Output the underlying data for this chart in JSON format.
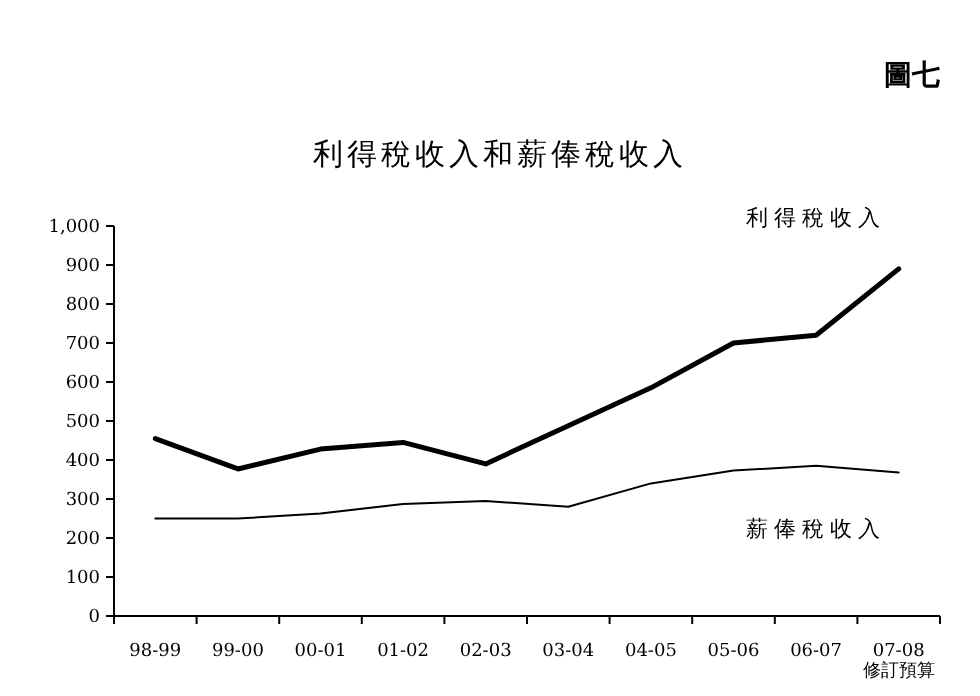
{
  "chart_data": {
    "type": "line",
    "title": "利得稅收入和薪俸稅收入",
    "categories": [
      "98-99",
      "99-00",
      "00-01",
      "01-02",
      "02-03",
      "03-04",
      "04-05",
      "05-06",
      "06-07",
      "07-08"
    ],
    "series": [
      {
        "name": "利得稅收入",
        "color": "#000000",
        "values": [
          455,
          377,
          428,
          445,
          390,
          488,
          585,
          700,
          720,
          890
        ]
      },
      {
        "name": "薪俸稅收入",
        "color": "#000000",
        "values": [
          250,
          250,
          263,
          287,
          295,
          280,
          340,
          373,
          385,
          368
        ]
      }
    ],
    "ylim": [
      0,
      1000
    ],
    "yticks": [
      0,
      100,
      200,
      300,
      400,
      500,
      600,
      700,
      800,
      {
        "value": 900,
        "label": "900"
      },
      {
        "value": 1000,
        "label": "1,000"
      }
    ],
    "grid": false,
    "marker": "none",
    "line_style": "solid",
    "annotations": [
      "圖七",
      "修訂預算"
    ]
  }
}
